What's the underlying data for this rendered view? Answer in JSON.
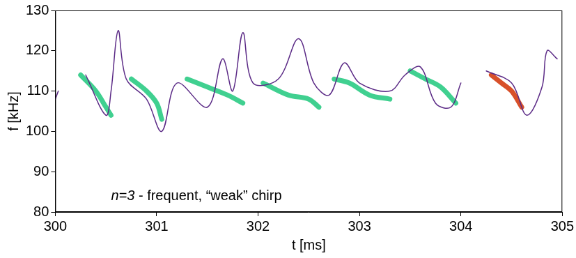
{
  "chart_data": {
    "type": "line",
    "x_label": "t [ms]",
    "y_label": "f [kHz]",
    "xlim": [
      300,
      305
    ],
    "xticks": [
      300,
      301,
      302,
      303,
      304,
      305
    ],
    "ylim": [
      80,
      130
    ],
    "yticks": [
      80,
      90,
      100,
      110,
      120,
      130
    ],
    "grid": false,
    "annotations": [
      {
        "text": "n=3 - frequent, “weak” chirp",
        "x": 300.55,
        "y": 83
      }
    ],
    "series": [
      {
        "color": "#5b2a86",
        "line_style": "solid",
        "x": [
          300.0,
          300.03,
          null,
          300.3,
          300.5,
          300.55,
          300.62,
          300.7,
          300.9,
          301.05,
          301.2,
          301.5,
          301.65,
          301.75,
          301.85,
          301.95,
          302.2,
          302.4,
          302.55,
          302.7,
          302.85,
          303.0,
          303.3,
          303.45,
          303.6,
          303.75,
          303.9,
          304.0,
          null,
          304.25,
          304.5,
          304.65,
          304.8,
          304.85,
          304.95
        ],
        "values": [
          108,
          110,
          null,
          114,
          104,
          110,
          125,
          113,
          108,
          100,
          112,
          106,
          118,
          110,
          124.5,
          112,
          113,
          123,
          112,
          109,
          117,
          112,
          110,
          114,
          116,
          107,
          106,
          112,
          null,
          115,
          112,
          104,
          111,
          120,
          118
        ]
      },
      {
        "color": "#40d090",
        "line_style": "solid",
        "x": [
          300.25,
          300.4,
          300.5,
          300.55
        ],
        "values": [
          114,
          110,
          106,
          104
        ]
      },
      {
        "color": "#40d090",
        "line_style": "solid",
        "x": [
          300.75,
          300.9,
          301.0,
          301.05
        ],
        "values": [
          113,
          110,
          107,
          103
        ]
      },
      {
        "color": "#40d090",
        "line_style": "solid",
        "x": [
          301.3,
          301.5,
          301.7,
          301.85
        ],
        "values": [
          113,
          111,
          109,
          107
        ]
      },
      {
        "color": "#40d090",
        "line_style": "solid",
        "x": [
          302.05,
          302.3,
          302.5,
          302.6
        ],
        "values": [
          112,
          109,
          108,
          106
        ]
      },
      {
        "color": "#40d090",
        "line_style": "solid",
        "x": [
          302.75,
          302.9,
          303.1,
          303.3
        ],
        "values": [
          113,
          112,
          109,
          108
        ]
      },
      {
        "color": "#40d090",
        "line_style": "solid",
        "x": [
          303.5,
          303.65,
          303.8,
          303.95
        ],
        "values": [
          115,
          113,
          111,
          107
        ]
      },
      {
        "color": "#d8502a",
        "line_style": "solid",
        "x": [
          304.3,
          304.4,
          304.5,
          304.6
        ],
        "values": [
          114,
          112,
          110,
          106
        ]
      }
    ]
  }
}
